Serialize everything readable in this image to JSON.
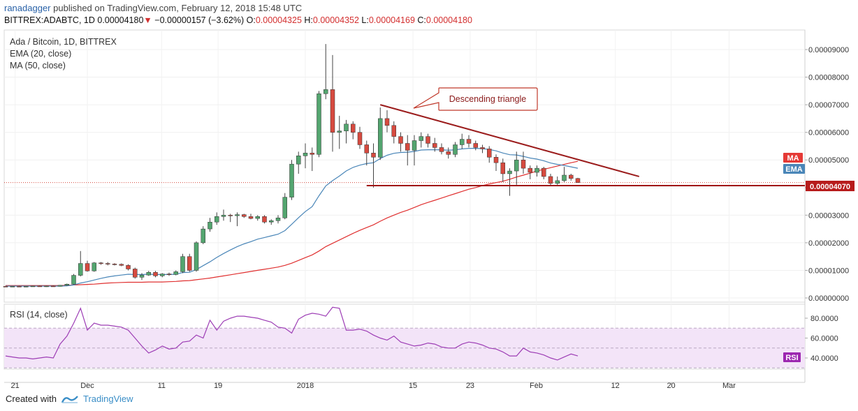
{
  "header": {
    "author": "ranadagger",
    "published_text": "published on TradingView.com, February 12, 2018 15:48 UTC",
    "symbol": "BITTREX:ADABTC, 1D",
    "last_price": "0.00004180",
    "change": "−0.00000157 (−3.62%)",
    "o_label": "O:",
    "o_value": "0.00004325",
    "h_label": "H:",
    "h_value": "0.00004352",
    "l_label": "L:",
    "l_value": "0.00004169",
    "c_label": "C:",
    "c_value": "0.00004180"
  },
  "legend": {
    "title": "Ada / Bitcoin, 1D, BITTREX",
    "ema": "EMA (20, close)",
    "ma": "MA (50, close)",
    "rsi": "RSI (14, close)"
  },
  "annotation": "Descending triangle",
  "badges": {
    "ma": "MA",
    "ema": "EMA",
    "rsi": "RSI",
    "price": "0.00004070"
  },
  "footer": {
    "created_with": "Created with",
    "brand": "TradingView"
  },
  "colors": {
    "up": "#53a56f",
    "down": "#d64a3f",
    "ema": "#4a86b8",
    "ma": "#e03030",
    "rsi_line": "#9d3db5",
    "rsi_band": "#f3e4f8",
    "trendline": "#9b1c1c",
    "support": "#a01515",
    "badge_ma": "#e53935",
    "badge_ema": "#4a86b8",
    "badge_rsi": "#9c27b0",
    "badge_price": "#b71c1c"
  },
  "chart_data": {
    "type": "candlestick",
    "price_axis": {
      "ticks": [
        "0.00009000",
        "0.00008000",
        "0.00007000",
        "0.00006000",
        "0.00005000",
        "0.00004000",
        "0.00003000",
        "0.00002000",
        "0.00001000",
        "0.00000000"
      ],
      "range": [
        0,
        9.35e-05
      ]
    },
    "x_labels": [
      "21",
      "Dec",
      "11",
      "19",
      "2018",
      "15",
      "23",
      "Feb",
      "12",
      "20",
      "Mar"
    ],
    "candles": [
      {
        "o": 4.2e-06,
        "h": 4.4e-06,
        "l": 4e-06,
        "c": 4.1e-06
      },
      {
        "o": 4.1e-06,
        "h": 4.3e-06,
        "l": 4e-06,
        "c": 4.2e-06
      },
      {
        "o": 4.2e-06,
        "h": 4.4e-06,
        "l": 4e-06,
        "c": 4.1e-06
      },
      {
        "o": 4.1e-06,
        "h": 4.3e-06,
        "l": 3.9e-06,
        "c": 4.2e-06
      },
      {
        "o": 4.2e-06,
        "h": 4.4e-06,
        "l": 4.1e-06,
        "c": 4.3e-06
      },
      {
        "o": 4.3e-06,
        "h": 4.5e-06,
        "l": 4.1e-06,
        "c": 4.2e-06
      },
      {
        "o": 4.2e-06,
        "h": 4.4e-06,
        "l": 4e-06,
        "c": 4.3e-06
      },
      {
        "o": 4.3e-06,
        "h": 4.5e-06,
        "l": 4.1e-06,
        "c": 4.2e-06
      },
      {
        "o": 4.2e-06,
        "h": 4.7e-06,
        "l": 4.1e-06,
        "c": 4.6e-06
      },
      {
        "o": 4.6e-06,
        "h": 5.2e-06,
        "l": 4.4e-06,
        "c": 5e-06
      },
      {
        "o": 5e-06,
        "h": 8.7e-06,
        "l": 4.8e-06,
        "c": 8.2e-06
      },
      {
        "o": 8.2e-06,
        "h": 1.7e-05,
        "l": 7.8e-06,
        "c": 1.25e-05
      },
      {
        "o": 1.25e-05,
        "h": 1.35e-05,
        "l": 9.5e-06,
        "c": 9.8e-06
      },
      {
        "o": 9.8e-06,
        "h": 1.3e-05,
        "l": 9.5e-06,
        "c": 1.27e-05
      },
      {
        "o": 1.27e-05,
        "h": 1.3e-05,
        "l": 1.2e-05,
        "c": 1.25e-05
      },
      {
        "o": 1.25e-05,
        "h": 1.3e-05,
        "l": 1.18e-05,
        "c": 1.23e-05
      },
      {
        "o": 1.23e-05,
        "h": 1.26e-05,
        "l": 1.18e-05,
        "c": 1.22e-05
      },
      {
        "o": 1.22e-05,
        "h": 1.25e-05,
        "l": 1.15e-05,
        "c": 1.18e-05
      },
      {
        "o": 1.18e-05,
        "h": 1.22e-05,
        "l": 1e-05,
        "c": 1.05e-05
      },
      {
        "o": 1.05e-05,
        "h": 1.1e-05,
        "l": 7e-06,
        "c": 7.5e-06
      },
      {
        "o": 7.5e-06,
        "h": 9e-06,
        "l": 6.5e-06,
        "c": 8.3e-06
      },
      {
        "o": 8.3e-06,
        "h": 9.8e-06,
        "l": 8e-06,
        "c": 9.3e-06
      },
      {
        "o": 9.3e-06,
        "h": 9.8e-06,
        "l": 7.5e-06,
        "c": 8e-06
      },
      {
        "o": 8e-06,
        "h": 9e-06,
        "l": 7.5e-06,
        "c": 8.7e-06
      },
      {
        "o": 8.7e-06,
        "h": 9.2e-06,
        "l": 8e-06,
        "c": 8.5e-06
      },
      {
        "o": 8.5e-06,
        "h": 1e-05,
        "l": 8.2e-06,
        "c": 9.5e-06
      },
      {
        "o": 9.5e-06,
        "h": 1.6e-05,
        "l": 9e-06,
        "c": 1.5e-05
      },
      {
        "o": 1.5e-05,
        "h": 1.6e-05,
        "l": 9.5e-06,
        "c": 1e-05
      },
      {
        "o": 1e-05,
        "h": 2.05e-05,
        "l": 9.5e-06,
        "c": 2e-05
      },
      {
        "o": 2e-05,
        "h": 2.6e-05,
        "l": 1.95e-05,
        "c": 2.5e-05
      },
      {
        "o": 2.5e-05,
        "h": 2.9e-05,
        "l": 2.4e-05,
        "c": 2.75e-05
      },
      {
        "o": 2.75e-05,
        "h": 3.1e-05,
        "l": 2.65e-05,
        "c": 2.95e-05
      },
      {
        "o": 2.95e-05,
        "h": 3.2e-05,
        "l": 2.8e-05,
        "c": 3e-05
      },
      {
        "o": 3e-05,
        "h": 3.05e-05,
        "l": 2.75e-05,
        "c": 2.98e-05
      },
      {
        "o": 2.98e-05,
        "h": 3.1e-05,
        "l": 2.6e-05,
        "c": 3.02e-05
      },
      {
        "o": 3.02e-05,
        "h": 3.05e-05,
        "l": 2.9e-05,
        "c": 2.95e-05
      },
      {
        "o": 2.95e-05,
        "h": 3.05e-05,
        "l": 2.85e-05,
        "c": 2.88e-05
      },
      {
        "o": 2.88e-05,
        "h": 3e-05,
        "l": 2.8e-05,
        "c": 2.95e-05
      },
      {
        "o": 2.95e-05,
        "h": 3e-05,
        "l": 2.7e-05,
        "c": 2.75e-05
      },
      {
        "o": 2.75e-05,
        "h": 2.85e-05,
        "l": 2.65e-05,
        "c": 2.8e-05
      },
      {
        "o": 2.8e-05,
        "h": 3e-05,
        "l": 2.7e-05,
        "c": 2.9e-05
      },
      {
        "o": 2.9e-05,
        "h": 3.8e-05,
        "l": 2.85e-05,
        "c": 3.65e-05
      },
      {
        "o": 3.65e-05,
        "h": 5e-05,
        "l": 3.55e-05,
        "c": 4.85e-05
      },
      {
        "o": 4.85e-05,
        "h": 5.3e-05,
        "l": 4.5e-05,
        "c": 5.15e-05
      },
      {
        "o": 5.15e-05,
        "h": 5.6e-05,
        "l": 4.7e-05,
        "c": 5.25e-05
      },
      {
        "o": 5.25e-05,
        "h": 5.45e-05,
        "l": 4.6e-05,
        "c": 5.2e-05
      },
      {
        "o": 5.2e-05,
        "h": 7.5e-05,
        "l": 5.1e-05,
        "c": 7.4e-05
      },
      {
        "o": 7.4e-05,
        "h": 9.2e-05,
        "l": 7.2e-05,
        "c": 7.55e-05
      },
      {
        "o": 7.55e-05,
        "h": 8.8e-05,
        "l": 5.3e-05,
        "c": 6e-05
      },
      {
        "o": 6e-05,
        "h": 6.6e-05,
        "l": 5.4e-05,
        "c": 6.05e-05
      },
      {
        "o": 6.05e-05,
        "h": 6.45e-05,
        "l": 5.6e-05,
        "c": 6.3e-05
      },
      {
        "o": 6.3e-05,
        "h": 6.4e-05,
        "l": 5.75e-05,
        "c": 6e-05
      },
      {
        "o": 6e-05,
        "h": 6.2e-05,
        "l": 5.4e-05,
        "c": 5.55e-05
      },
      {
        "o": 5.55e-05,
        "h": 5.7e-05,
        "l": 4.8e-05,
        "c": 5.25e-05
      },
      {
        "o": 5.25e-05,
        "h": 5.6e-05,
        "l": 4e-05,
        "c": 5.1e-05
      },
      {
        "o": 5.1e-05,
        "h": 6.9e-05,
        "l": 5e-05,
        "c": 6.5e-05
      },
      {
        "o": 6.5e-05,
        "h": 6.8e-05,
        "l": 6e-05,
        "c": 6.25e-05
      },
      {
        "o": 6.25e-05,
        "h": 6.4e-05,
        "l": 5.6e-05,
        "c": 5.85e-05
      },
      {
        "o": 5.85e-05,
        "h": 6e-05,
        "l": 5.3e-05,
        "c": 5.6e-05
      },
      {
        "o": 5.6e-05,
        "h": 5.9e-05,
        "l": 4.8e-05,
        "c": 5.35e-05
      },
      {
        "o": 5.35e-05,
        "h": 5.9e-05,
        "l": 4.8e-05,
        "c": 5.7e-05
      },
      {
        "o": 5.7e-05,
        "h": 6e-05,
        "l": 5.45e-05,
        "c": 5.85e-05
      },
      {
        "o": 5.85e-05,
        "h": 5.95e-05,
        "l": 5.45e-05,
        "c": 5.6e-05
      },
      {
        "o": 5.6e-05,
        "h": 5.8e-05,
        "l": 5.3e-05,
        "c": 5.45e-05
      },
      {
        "o": 5.45e-05,
        "h": 5.6e-05,
        "l": 5.2e-05,
        "c": 5.3e-05
      },
      {
        "o": 5.3e-05,
        "h": 5.45e-05,
        "l": 5.05e-05,
        "c": 5.2e-05
      },
      {
        "o": 5.2e-05,
        "h": 5.65e-05,
        "l": 5.1e-05,
        "c": 5.55e-05
      },
      {
        "o": 5.55e-05,
        "h": 5.95e-05,
        "l": 5.4e-05,
        "c": 5.75e-05
      },
      {
        "o": 5.75e-05,
        "h": 5.9e-05,
        "l": 5.45e-05,
        "c": 5.6e-05
      },
      {
        "o": 5.6e-05,
        "h": 5.7e-05,
        "l": 5.35e-05,
        "c": 5.45e-05
      },
      {
        "o": 5.45e-05,
        "h": 5.55e-05,
        "l": 5.25e-05,
        "c": 5.4e-05
      },
      {
        "o": 5.4e-05,
        "h": 5.5e-05,
        "l": 4.9e-05,
        "c": 5.1e-05
      },
      {
        "o": 5.1e-05,
        "h": 5.2e-05,
        "l": 4.6e-05,
        "c": 4.9e-05
      },
      {
        "o": 4.9e-05,
        "h": 5.05e-05,
        "l": 4.2e-05,
        "c": 4.5e-05
      },
      {
        "o": 4.5e-05,
        "h": 4.7e-05,
        "l": 3.7e-05,
        "c": 4.6e-05
      },
      {
        "o": 4.6e-05,
        "h": 5.3e-05,
        "l": 4.1e-05,
        "c": 5e-05
      },
      {
        "o": 5e-05,
        "h": 5.3e-05,
        "l": 4.5e-05,
        "c": 4.7e-05
      },
      {
        "o": 4.7e-05,
        "h": 4.8e-05,
        "l": 4.3e-05,
        "c": 4.55e-05
      },
      {
        "o": 4.55e-05,
        "h": 4.8e-05,
        "l": 4.4e-05,
        "c": 4.7e-05
      },
      {
        "o": 4.7e-05,
        "h": 4.75e-05,
        "l": 4.3e-05,
        "c": 4.4e-05
      },
      {
        "o": 4.4e-05,
        "h": 4.5e-05,
        "l": 4.05e-05,
        "c": 4.15e-05
      },
      {
        "o": 4.15e-05,
        "h": 4.4e-05,
        "l": 4.1e-05,
        "c": 4.25e-05
      },
      {
        "o": 4.25e-05,
        "h": 4.75e-05,
        "l": 4.2e-05,
        "c": 4.45e-05
      },
      {
        "o": 4.45e-05,
        "h": 4.5e-05,
        "l": 4.25e-05,
        "c": 4.33e-05
      },
      {
        "o": 4.33e-05,
        "h": 4.35e-05,
        "l": 4.17e-05,
        "c": 4.18e-05
      }
    ],
    "ema20": [
      4.3e-06,
      4.3e-06,
      4.3e-06,
      4.3e-06,
      4.3e-06,
      4.3e-06,
      4.3e-06,
      4.3e-06,
      4.3e-06,
      4.4e-06,
      4.7e-06,
      5.4e-06,
      5.9e-06,
      6.5e-06,
      7.1e-06,
      7.6e-06,
      8e-06,
      8.3e-06,
      8.6e-06,
      8.5e-06,
      8.5e-06,
      8.6e-06,
      8.5e-06,
      8.5e-06,
      8.5e-06,
      8.6e-06,
      9.2e-06,
      9.3e-06,
      1.03e-05,
      1.17e-05,
      1.31e-05,
      1.47e-05,
      1.61e-05,
      1.74e-05,
      1.86e-05,
      1.96e-05,
      2.04e-05,
      2.13e-05,
      2.19e-05,
      2.25e-05,
      2.31e-05,
      2.44e-05,
      2.67e-05,
      2.91e-05,
      3.13e-05,
      3.31e-05,
      3.7e-05,
      4.06e-05,
      4.25e-05,
      4.42e-05,
      4.6e-05,
      4.73e-05,
      4.81e-05,
      4.87e-05,
      4.9e-05,
      5.05e-05,
      5.17e-05,
      5.24e-05,
      5.27e-05,
      5.28e-05,
      5.31e-05,
      5.36e-05,
      5.37e-05,
      5.37e-05,
      5.37e-05,
      5.35e-05,
      5.37e-05,
      5.4e-05,
      5.42e-05,
      5.42e-05,
      5.41e-05,
      5.38e-05,
      5.33e-05,
      5.25e-05,
      5.19e-05,
      5.18e-05,
      5.13e-05,
      5.07e-05,
      5.03e-05,
      4.97e-05,
      4.89e-05,
      4.84e-05,
      4.8e-05,
      4.75e-05,
      4.7e-05
    ],
    "ma50": [
      4.5e-06,
      4.5e-06,
      4.5e-06,
      4.5e-06,
      4.5e-06,
      4.5e-06,
      4.5e-06,
      4.5e-06,
      4.5e-06,
      4.6e-06,
      4.7e-06,
      4.8e-06,
      4.9e-06,
      5e-06,
      5.2e-06,
      5.4e-06,
      5.5e-06,
      5.6e-06,
      5.7e-06,
      5.7e-06,
      5.7e-06,
      5.8e-06,
      5.8e-06,
      5.8e-06,
      5.9e-06,
      6e-06,
      6.2e-06,
      6.3e-06,
      6.6e-06,
      6.9e-06,
      7.2e-06,
      7.6e-06,
      8e-06,
      8.4e-06,
      8.8e-06,
      9.2e-06,
      9.6e-06,
      1e-05,
      1.04e-05,
      1.08e-05,
      1.12e-05,
      1.18e-05,
      1.26e-05,
      1.36e-05,
      1.46e-05,
      1.56e-05,
      1.7e-05,
      1.86e-05,
      1.98e-05,
      2.1e-05,
      2.22e-05,
      2.34e-05,
      2.45e-05,
      2.55e-05,
      2.65e-05,
      2.78e-05,
      2.9e-05,
      3e-05,
      3.1e-05,
      3.18e-05,
      3.28e-05,
      3.38e-05,
      3.46e-05,
      3.54e-05,
      3.62e-05,
      3.7e-05,
      3.78e-05,
      3.86e-05,
      3.94e-05,
      4e-05,
      4.07e-05,
      4.13e-05,
      4.18e-05,
      4.23e-05,
      4.3e-05,
      4.38e-05,
      4.45e-05,
      4.52e-05,
      4.6e-05,
      4.66e-05,
      4.72e-05,
      4.78e-05,
      4.84e-05,
      4.9e-05,
      4.95e-05
    ],
    "rsi": [
      42,
      41,
      40,
      40,
      39,
      40,
      41,
      40,
      54,
      62,
      75,
      90,
      68,
      75,
      73,
      73,
      72,
      71,
      68,
      60,
      52,
      45,
      48,
      52,
      49,
      50,
      56,
      57,
      63,
      60,
      78,
      68,
      77,
      80,
      82,
      82,
      81,
      80,
      78,
      76,
      71,
      70,
      65,
      79,
      83,
      85,
      84,
      82,
      91,
      90,
      68,
      68,
      69,
      67,
      63,
      60,
      58,
      62,
      56,
      54,
      52,
      53,
      55,
      54,
      51,
      50,
      50,
      54,
      56,
      55,
      53,
      50,
      49,
      46,
      42,
      42,
      50,
      46,
      45,
      43,
      40,
      38,
      41,
      44,
      42
    ],
    "rsi_axis": {
      "ticks": [
        "80.0000",
        "60.0000",
        "40.0000"
      ],
      "range": [
        30,
        95
      ],
      "bands": [
        70,
        30
      ]
    },
    "annotations": {
      "triangle_top": [
        [
          55,
          7e-05
        ],
        [
          93,
          4.4e-05
        ]
      ],
      "support": [
        [
          53,
          4.07e-05
        ],
        [
          130,
          4.07e-05
        ]
      ],
      "label": "Descending triangle"
    }
  }
}
